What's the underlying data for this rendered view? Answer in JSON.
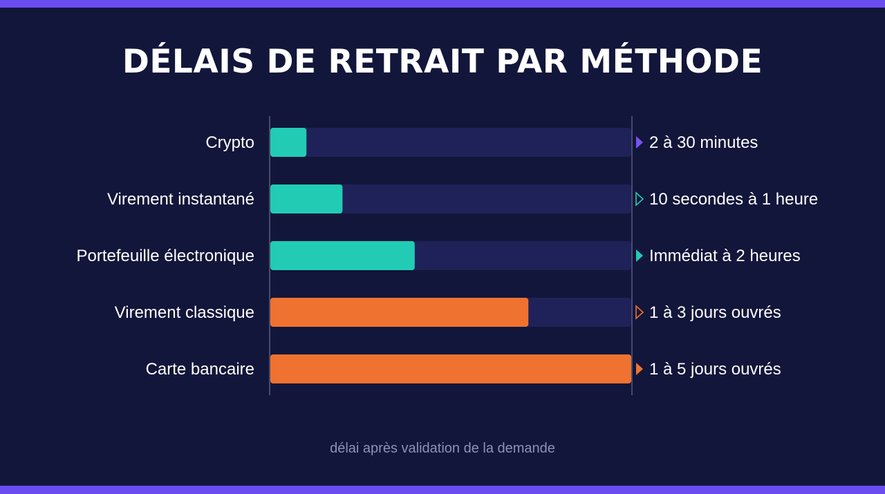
{
  "title": "DÉLAIS DE RETRAIT PAR MÉTHODE",
  "footnote": "délai après validation de la demande",
  "colors": {
    "background": "#12163a",
    "frame": "#6b4cf0",
    "track": "#1f2258",
    "axis": "#5a5d80",
    "label": "#ffffff",
    "fast": "#22ccb4",
    "slow": "#f07230"
  },
  "chart_data": {
    "type": "bar",
    "orientation": "horizontal",
    "title": "DÉLAIS DE RETRAIT PAR MÉTHODE",
    "xlim": [
      0,
      1
    ],
    "categories": [
      "Crypto",
      "Virement instantané",
      "Portefeuille électronique",
      "Virement classique",
      "Carte bancaire"
    ],
    "values": [
      0.1,
      0.2,
      0.4,
      0.715,
      1.0
    ],
    "value_labels": [
      "2 à 30 minutes",
      "10 secondes à 1 heure",
      "Immédiat à 2 heures",
      "1 à 3 jours ouvrés",
      "1 à 5 jours ouvrés"
    ],
    "bar_colors": [
      "#22ccb4",
      "#22ccb4",
      "#22ccb4",
      "#f07230",
      "#f07230"
    ],
    "marker_colors": [
      "#7a52f4",
      "#22ccb4",
      "#22ccb4",
      "#f07230",
      "#f07230"
    ],
    "marker_styles": [
      "filled",
      "outline",
      "filled",
      "outline",
      "filled"
    ]
  }
}
